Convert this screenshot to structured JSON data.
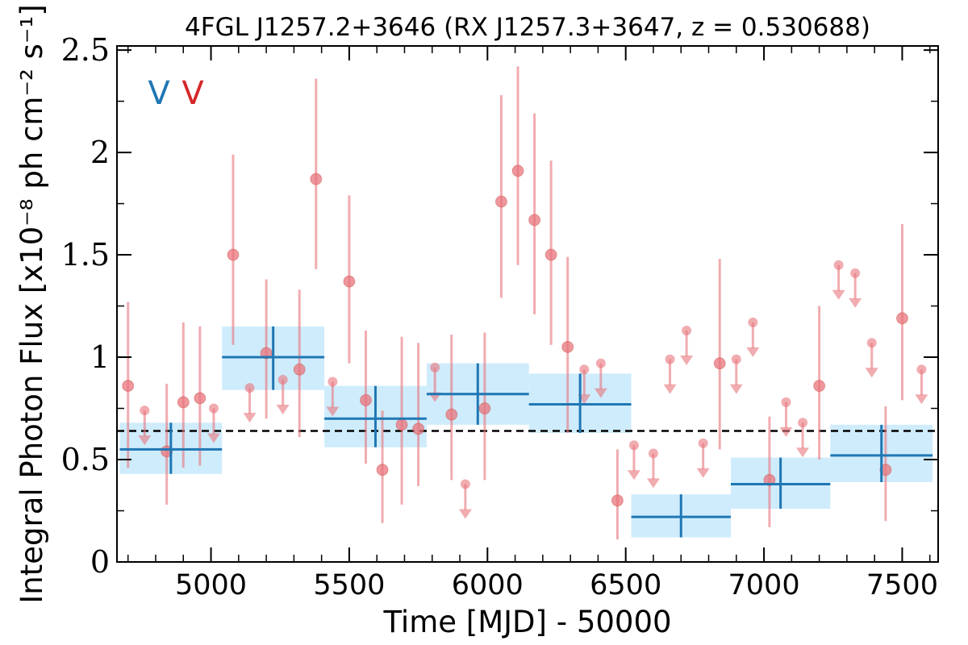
{
  "chart_data": {
    "type": "scatter",
    "title": "4FGL J1257.2+3646 (RX J1257.3+3647, z = 0.530688)",
    "xlabel": "Time [MJD] - 50000",
    "ylabel": "Integral Photon Flux [x10⁻⁸ ph cm⁻² s⁻¹]",
    "xlim": [
      4660,
      7630
    ],
    "ylim": [
      0,
      2.52
    ],
    "xticks": [
      5000,
      5500,
      6000,
      6500,
      7000,
      7500
    ],
    "xtick_labels": [
      "5000",
      "5500",
      "6000",
      "6500",
      "7000",
      "7500"
    ],
    "yticks": [
      0,
      0.5,
      1,
      1.5,
      2,
      2.5
    ],
    "ytick_labels": [
      "0",
      "0.5",
      "1",
      "1.5",
      "2",
      "2.5"
    ],
    "legend_marks": [
      {
        "text": "V",
        "color": "#1f77b4"
      },
      {
        "text": "V",
        "color": "#d62728"
      }
    ],
    "mean_flux": 0.64,
    "colors": {
      "monthly": "#e8747c",
      "bayesian_line": "#1f77b4",
      "bayesian_fill": "#bfe6fb",
      "mean_line": "#000000"
    },
    "series": [
      {
        "kind": "monthly",
        "detections": [
          {
            "t": 4700,
            "y": 0.86,
            "lo": 0.46,
            "hi": 1.27
          },
          {
            "t": 4840,
            "y": 0.54,
            "lo": 0.28,
            "hi": 0.87
          },
          {
            "t": 4900,
            "y": 0.78,
            "lo": 0.46,
            "hi": 1.17
          },
          {
            "t": 4960,
            "y": 0.8,
            "lo": 0.47,
            "hi": 1.15
          },
          {
            "t": 5080,
            "y": 1.5,
            "lo": 1.06,
            "hi": 1.99
          },
          {
            "t": 5200,
            "y": 1.02,
            "lo": 0.7,
            "hi": 1.38
          },
          {
            "t": 5320,
            "y": 0.94,
            "lo": 0.61,
            "hi": 1.33
          },
          {
            "t": 5380,
            "y": 1.87,
            "lo": 1.43,
            "hi": 2.36
          },
          {
            "t": 5500,
            "y": 1.37,
            "lo": 0.97,
            "hi": 1.79
          },
          {
            "t": 5560,
            "y": 0.79,
            "lo": 0.48,
            "hi": 1.13
          },
          {
            "t": 5620,
            "y": 0.45,
            "lo": 0.19,
            "hi": 0.74
          },
          {
            "t": 5690,
            "y": 0.67,
            "lo": 0.28,
            "hi": 1.1
          },
          {
            "t": 5750,
            "y": 0.65,
            "lo": 0.37,
            "hi": 1.07
          },
          {
            "t": 5870,
            "y": 0.72,
            "lo": 0.4,
            "hi": 1.11
          },
          {
            "t": 5990,
            "y": 0.75,
            "lo": 0.4,
            "hi": 1.12
          },
          {
            "t": 6050,
            "y": 1.76,
            "lo": 1.29,
            "hi": 2.28
          },
          {
            "t": 6110,
            "y": 1.91,
            "lo": 1.45,
            "hi": 2.42
          },
          {
            "t": 6170,
            "y": 1.67,
            "lo": 1.21,
            "hi": 2.19
          },
          {
            "t": 6230,
            "y": 1.5,
            "lo": 1.06,
            "hi": 1.96
          },
          {
            "t": 6290,
            "y": 1.05,
            "lo": 0.63,
            "hi": 1.49
          },
          {
            "t": 6470,
            "y": 0.3,
            "lo": 0.11,
            "hi": 0.55
          },
          {
            "t": 6840,
            "y": 0.97,
            "lo": 0.55,
            "hi": 1.48
          },
          {
            "t": 7020,
            "y": 0.4,
            "lo": 0.17,
            "hi": 0.71
          },
          {
            "t": 7200,
            "y": 0.86,
            "lo": 0.5,
            "hi": 1.25
          },
          {
            "t": 7440,
            "y": 0.45,
            "lo": 0.2,
            "hi": 0.76
          },
          {
            "t": 7500,
            "y": 1.19,
            "lo": 0.79,
            "hi": 1.65
          }
        ],
        "upper_limits": [
          {
            "t": 4760,
            "y": 0.74
          },
          {
            "t": 5010,
            "y": 0.75
          },
          {
            "t": 5140,
            "y": 0.85
          },
          {
            "t": 5260,
            "y": 0.89
          },
          {
            "t": 5440,
            "y": 0.88
          },
          {
            "t": 5810,
            "y": 0.95
          },
          {
            "t": 5920,
            "y": 0.38
          },
          {
            "t": 6350,
            "y": 0.94
          },
          {
            "t": 6410,
            "y": 0.97
          },
          {
            "t": 6530,
            "y": 0.57
          },
          {
            "t": 6600,
            "y": 0.53
          },
          {
            "t": 6660,
            "y": 0.99
          },
          {
            "t": 6720,
            "y": 1.13
          },
          {
            "t": 6780,
            "y": 0.58
          },
          {
            "t": 6900,
            "y": 0.99
          },
          {
            "t": 6960,
            "y": 1.17
          },
          {
            "t": 7080,
            "y": 0.78
          },
          {
            "t": 7140,
            "y": 0.68
          },
          {
            "t": 7270,
            "y": 1.45
          },
          {
            "t": 7330,
            "y": 1.41
          },
          {
            "t": 7390,
            "y": 1.07
          },
          {
            "t": 7570,
            "y": 0.94
          }
        ]
      },
      {
        "kind": "bayesian_blocks",
        "blocks": [
          {
            "start": 4670,
            "end": 5040,
            "y": 0.55,
            "lo": 0.43,
            "hi": 0.68
          },
          {
            "start": 5040,
            "end": 5410,
            "y": 1.0,
            "lo": 0.84,
            "hi": 1.15
          },
          {
            "start": 5410,
            "end": 5780,
            "y": 0.7,
            "lo": 0.56,
            "hi": 0.86
          },
          {
            "start": 5780,
            "end": 6150,
            "y": 0.82,
            "lo": 0.67,
            "hi": 0.97
          },
          {
            "start": 6150,
            "end": 6520,
            "y": 0.77,
            "lo": 0.63,
            "hi": 0.92
          },
          {
            "start": 6520,
            "end": 6880,
            "y": 0.22,
            "lo": 0.12,
            "hi": 0.33
          },
          {
            "start": 6880,
            "end": 7240,
            "y": 0.38,
            "lo": 0.26,
            "hi": 0.51
          },
          {
            "start": 7240,
            "end": 7610,
            "y": 0.52,
            "lo": 0.39,
            "hi": 0.67
          }
        ]
      }
    ]
  }
}
